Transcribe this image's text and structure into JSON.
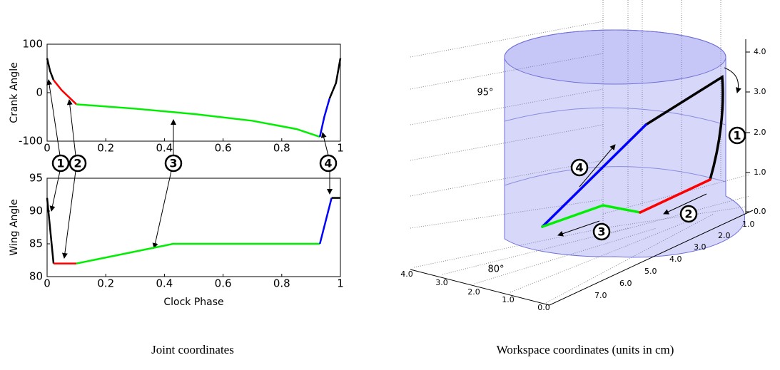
{
  "chart_data": [
    {
      "type": "line",
      "y_label": "Crank Angle",
      "xlim": [
        0,
        1
      ],
      "xticks": [
        0,
        0.2,
        0.4,
        0.6,
        0.8,
        1
      ],
      "ylim": [
        -100,
        100
      ],
      "yticks": [
        -100,
        0,
        100
      ],
      "series": [
        {
          "color": "#000000",
          "x": [
            0,
            0.01,
            0.022
          ],
          "values": [
            71,
            45,
            26
          ]
        },
        {
          "color": "#ff0000",
          "x": [
            0.022,
            0.05,
            0.1
          ],
          "values": [
            26,
            5,
            -24
          ]
        },
        {
          "color": "#00ee00",
          "x": [
            0.1,
            0.3,
            0.5,
            0.7,
            0.85,
            0.93
          ],
          "values": [
            -24,
            -33,
            -44,
            -58,
            -75,
            -91
          ]
        },
        {
          "color": "#0000ff",
          "x": [
            0.93,
            0.945,
            0.963
          ],
          "values": [
            -91,
            -50,
            -12
          ]
        },
        {
          "color": "#000000",
          "x": [
            0.963,
            0.985,
            1
          ],
          "values": [
            -12,
            20,
            71
          ]
        }
      ],
      "annotations": [
        "1",
        "2",
        "3",
        "4"
      ]
    },
    {
      "type": "line",
      "y_label": "Wing Angle",
      "x_label": "Clock Phase",
      "xlim": [
        0,
        1
      ],
      "xticks": [
        0,
        0.2,
        0.4,
        0.6,
        0.8,
        1
      ],
      "ylim": [
        80,
        95
      ],
      "yticks": [
        80,
        85,
        90,
        95
      ],
      "series": [
        {
          "color": "#000000",
          "x": [
            0,
            0.022
          ],
          "values": [
            92,
            82
          ]
        },
        {
          "color": "#ff0000",
          "x": [
            0.022,
            0.1
          ],
          "values": [
            82,
            82
          ]
        },
        {
          "color": "#00ee00",
          "x": [
            0.1,
            0.43,
            0.93
          ],
          "values": [
            82,
            85,
            85
          ]
        },
        {
          "color": "#0000ff",
          "x": [
            0.93,
            0.97
          ],
          "values": [
            85,
            92
          ]
        },
        {
          "color": "#000000",
          "x": [
            0.97,
            1
          ],
          "values": [
            92,
            92
          ]
        }
      ]
    }
  ],
  "workspace": {
    "angle_labels": [
      "95°",
      "80°"
    ],
    "z_ticks": [
      "0.0",
      "1.0",
      "2.0",
      "3.0",
      "4.0"
    ],
    "left_ticks": [
      "4.0",
      "3.0",
      "2.0",
      "1.0",
      "0.0"
    ],
    "right_ticks": [
      "1.0",
      "2.0",
      "3.0",
      "4.0",
      "5.0",
      "6.0",
      "7.0"
    ],
    "markers": [
      "1",
      "2",
      "3",
      "4"
    ]
  },
  "captions": [
    "Joint coordinates",
    "Workspace coordinates (units in cm)"
  ]
}
